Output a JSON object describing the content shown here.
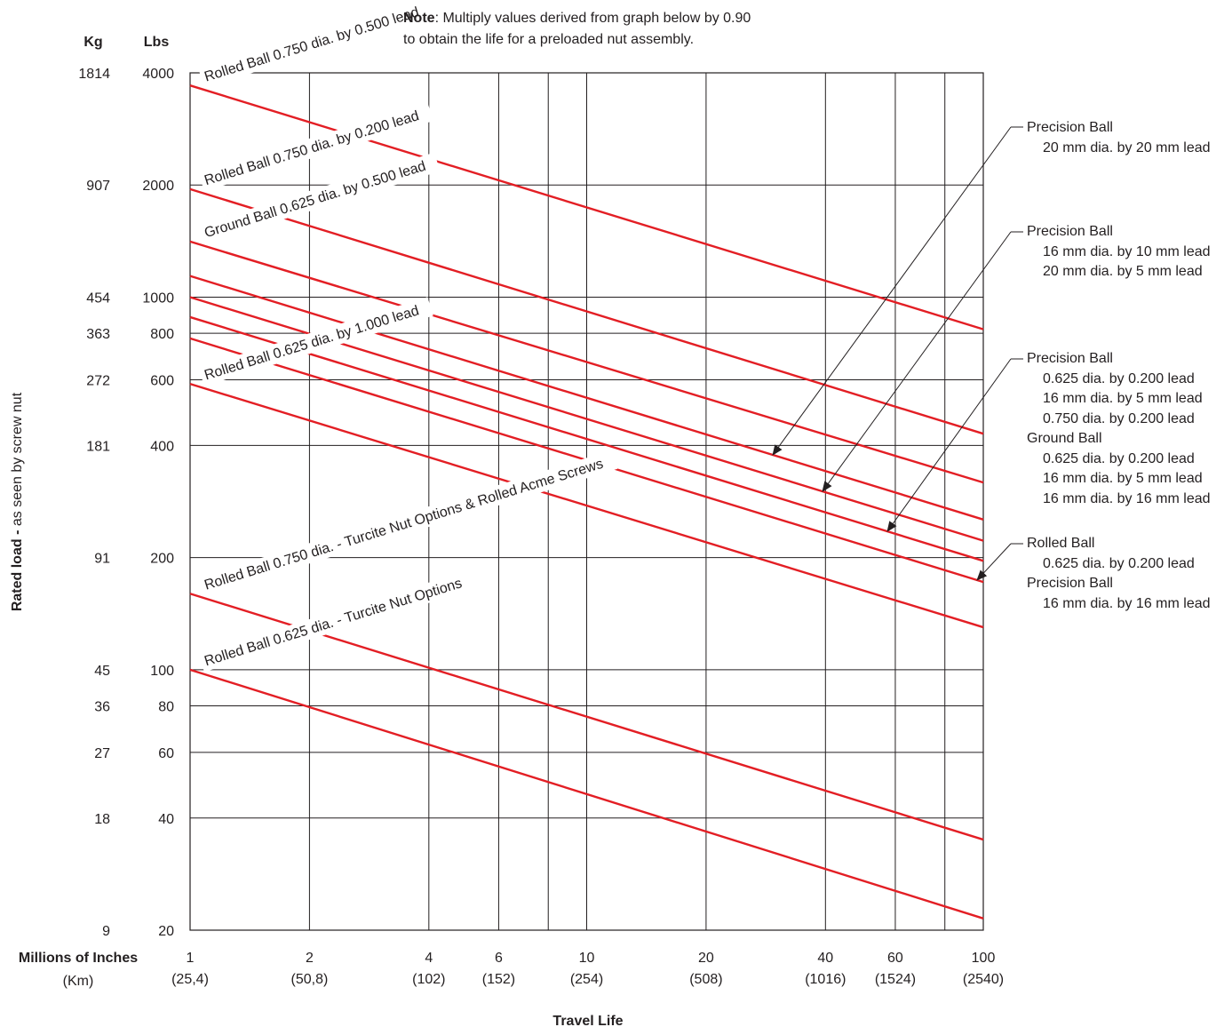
{
  "note": {
    "label": "Note",
    "line1": ": Multiply values derived from graph below by 0.90",
    "line2": "to obtain the life for a preloaded nut assembly."
  },
  "axes": {
    "kg_header": "Kg",
    "lbs_header": "Lbs",
    "y_label_bold": "Rated load - ",
    "y_label_rest": "as seen by screw nut",
    "x_row_label": "Millions of Inches",
    "x_row_sublabel": "(Km)",
    "x_title": "Travel Life"
  },
  "right_groups": [
    {
      "lines": [
        {
          "text": "Precision Ball",
          "indent": 0
        },
        {
          "text": "20 mm dia. by 20 mm lead",
          "indent": 1
        }
      ]
    },
    {
      "lines": [
        {
          "text": "Precision Ball",
          "indent": 0
        },
        {
          "text": "16 mm dia. by 10 mm lead",
          "indent": 1
        },
        {
          "text": "20 mm dia. by 5 mm lead",
          "indent": 1
        }
      ]
    },
    {
      "lines": [
        {
          "text": "Precision Ball",
          "indent": 0
        },
        {
          "text": "0.625 dia. by 0.200 lead",
          "indent": 1
        },
        {
          "text": "16 mm dia. by 5 mm lead",
          "indent": 1
        },
        {
          "text": "0.750 dia. by 0.200 lead",
          "indent": 1
        },
        {
          "text": "Ground Ball",
          "indent": 0
        },
        {
          "text": "0.625 dia. by 0.200 lead",
          "indent": 1
        },
        {
          "text": "16 mm dia. by 5 mm lead",
          "indent": 1
        },
        {
          "text": "16 mm dia. by 16 mm lead",
          "indent": 1
        }
      ]
    },
    {
      "lines": [
        {
          "text": "Rolled Ball",
          "indent": 0
        },
        {
          "text": "0.625 dia. by 0.200 lead",
          "indent": 1
        },
        {
          "text": "Precision Ball",
          "indent": 0
        },
        {
          "text": "16 mm dia. by 16 mm lead",
          "indent": 1
        }
      ]
    }
  ],
  "chart_data": {
    "type": "line",
    "x_scale": "log",
    "y_scale": "log",
    "xlim": [
      1,
      100
    ],
    "ylim": [
      20,
      4000
    ],
    "line_color": "#e31e24",
    "grid": true,
    "x_ticks": [
      {
        "value": 1,
        "label": "1",
        "km": "(25,4)"
      },
      {
        "value": 2,
        "label": "2",
        "km": "(50,8)"
      },
      {
        "value": 4,
        "label": "4",
        "km": "(102)"
      },
      {
        "value": 6,
        "label": "6",
        "km": "(152)"
      },
      {
        "value": 8,
        "label": "",
        "km": ""
      },
      {
        "value": 10,
        "label": "10",
        "km": "(254)"
      },
      {
        "value": 20,
        "label": "20",
        "km": "(508)"
      },
      {
        "value": 40,
        "label": "40",
        "km": "(1016)"
      },
      {
        "value": 60,
        "label": "60",
        "km": "(1524)"
      },
      {
        "value": 80,
        "label": "",
        "km": ""
      },
      {
        "value": 100,
        "label": "100",
        "km": "(2540)"
      }
    ],
    "y_ticks": [
      {
        "value": 4000,
        "lbs": "4000",
        "kg": "1814"
      },
      {
        "value": 2000,
        "lbs": "2000",
        "kg": "907"
      },
      {
        "value": 1000,
        "lbs": "1000",
        "kg": "454"
      },
      {
        "value": 800,
        "lbs": "800",
        "kg": "363"
      },
      {
        "value": 600,
        "lbs": "600",
        "kg": "272"
      },
      {
        "value": 400,
        "lbs": "400",
        "kg": "181"
      },
      {
        "value": 200,
        "lbs": "200",
        "kg": "91"
      },
      {
        "value": 100,
        "lbs": "100",
        "kg": "45"
      },
      {
        "value": 80,
        "lbs": "80",
        "kg": "36"
      },
      {
        "value": 60,
        "lbs": "60",
        "kg": "27"
      },
      {
        "value": 40,
        "lbs": "40",
        "kg": "18"
      },
      {
        "value": 20,
        "lbs": "20",
        "kg": "9"
      }
    ],
    "series": [
      {
        "name": "Rolled Ball 0.750 dia. by 0.500 lead",
        "x": [
          1,
          100
        ],
        "y": [
          3700,
          820
        ]
      },
      {
        "name": "Rolled Ball 0.750 dia. by 0.200 lead",
        "x": [
          1,
          100
        ],
        "y": [
          1950,
          430
        ]
      },
      {
        "name": "Ground Ball 0.625 dia. by 0.500 lead",
        "x": [
          1,
          100
        ],
        "y": [
          1410,
          318
        ]
      },
      {
        "name": "",
        "x": [
          1,
          100
        ],
        "y": [
          1140,
          253
        ]
      },
      {
        "name": "",
        "x": [
          1,
          100
        ],
        "y": [
          1000,
          222
        ]
      },
      {
        "name": "",
        "x": [
          1,
          100
        ],
        "y": [
          884,
          196
        ]
      },
      {
        "name": "",
        "x": [
          1,
          100
        ],
        "y": [
          775,
          172
        ]
      },
      {
        "name": "Rolled Ball 0.625 dia. by 1.000 lead",
        "x": [
          1,
          100
        ],
        "y": [
          585,
          130
        ]
      },
      {
        "name": "Rolled Ball 0.750 dia. - Turcite Nut Options & Rolled Acme Screws",
        "x": [
          1,
          100
        ],
        "y": [
          160,
          35
        ]
      },
      {
        "name": "Rolled Ball 0.625 dia. - Turcite Nut Options",
        "x": [
          1,
          100
        ],
        "y": [
          100,
          21.5
        ]
      }
    ]
  }
}
